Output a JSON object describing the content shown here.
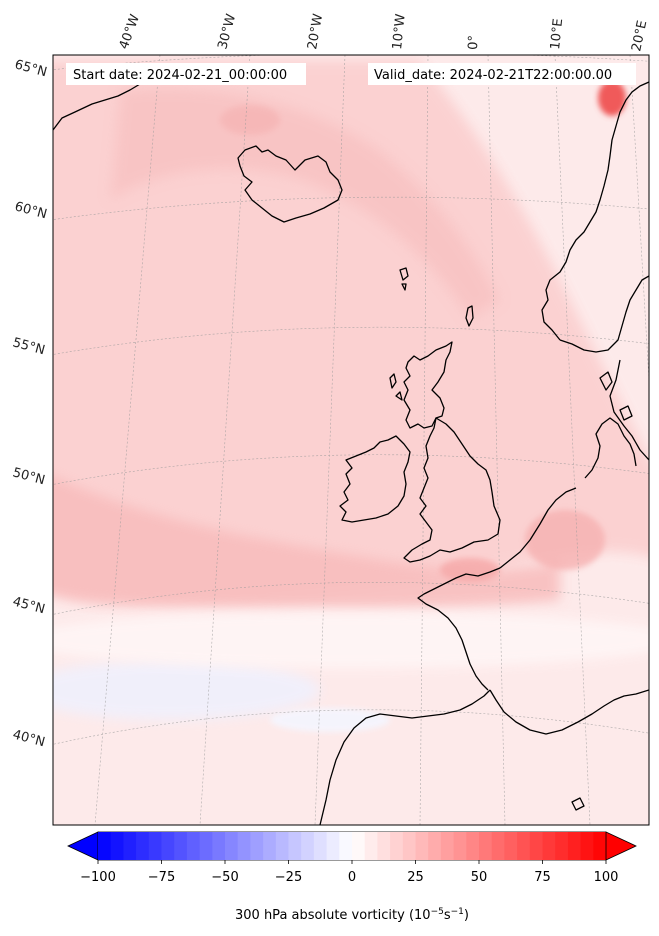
{
  "header": {
    "start_text": "Start date: 2024-02-21_00:00:00",
    "valid_text": "Valid_date: 2024-02-21T22:00:00.00"
  },
  "map": {
    "projection": "conic",
    "lon_labels": [
      "40°W",
      "30°W",
      "20°W",
      "10°W",
      "0°",
      "10°E",
      "20°E"
    ],
    "lat_labels": [
      "65°N",
      "60°N",
      "55°N",
      "50°N",
      "45°N",
      "40°N"
    ],
    "colors": {
      "coast": "#000000",
      "grid": "#9a9a9a",
      "low_shade": "#fde6e6",
      "mid_shade": "#fbd2d2",
      "high_shade": "#f7b8b8",
      "peak": "#f45a5a",
      "neg_shade": "#e7ecff"
    }
  },
  "colorbar": {
    "title_main": "300 hPa absolute vorticity (10",
    "title_exp1": "−5",
    "title_mid": "s",
    "title_exp2": "−1",
    "title_close": ")",
    "min": -100,
    "max": 100,
    "tick_labels": [
      "−100",
      "−75",
      "−50",
      "−25",
      "0",
      "25",
      "50",
      "75",
      "100"
    ],
    "tick_values": [
      -100,
      -75,
      -50,
      -25,
      0,
      25,
      50,
      75,
      100
    ],
    "cmap": "bwr",
    "extend": "both"
  }
}
